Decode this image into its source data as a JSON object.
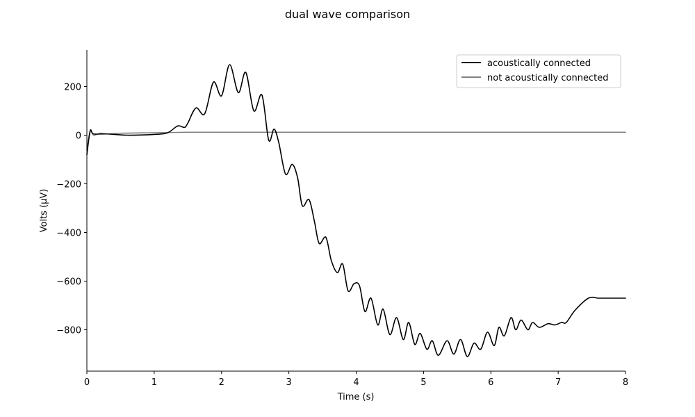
{
  "chart_data": {
    "type": "line",
    "title": "dual wave comparison",
    "xlabel": "Time (s)",
    "ylabel": "Volts (μV)",
    "xlim": [
      0,
      8
    ],
    "ylim": [
      -970,
      350
    ],
    "xticks": [
      0,
      1,
      2,
      3,
      4,
      5,
      6,
      7,
      8
    ],
    "yticks": [
      200,
      0,
      -200,
      -400,
      -600,
      -800
    ],
    "ytick_labels": [
      "200",
      "0",
      "−200",
      "−400",
      "−600",
      "−800"
    ],
    "grid": false,
    "legend_position": "top-right",
    "series": [
      {
        "name": "acoustically connected",
        "color": "#000000",
        "x": [
          0,
          0.05,
          0.1,
          0.3,
          0.6,
          1.0,
          1.2,
          1.35,
          1.45,
          1.5,
          1.62,
          1.75,
          1.88,
          2.0,
          2.12,
          2.25,
          2.36,
          2.48,
          2.6,
          2.7,
          2.78,
          2.85,
          2.95,
          3.05,
          3.13,
          3.2,
          3.3,
          3.38,
          3.45,
          3.55,
          3.63,
          3.72,
          3.8,
          3.88,
          3.97,
          4.05,
          4.13,
          4.22,
          4.32,
          4.4,
          4.5,
          4.6,
          4.7,
          4.78,
          4.87,
          4.95,
          5.05,
          5.13,
          5.22,
          5.35,
          5.45,
          5.55,
          5.65,
          5.75,
          5.85,
          5.95,
          6.05,
          6.12,
          6.2,
          6.3,
          6.37,
          6.45,
          6.55,
          6.62,
          6.72,
          6.85,
          6.95,
          7.05,
          7.12,
          7.25,
          7.45,
          7.6,
          7.75,
          7.9,
          8.0
        ],
        "y": [
          -80,
          18,
          5,
          5,
          0,
          3,
          10,
          38,
          32,
          50,
          112,
          88,
          218,
          162,
          290,
          175,
          258,
          100,
          165,
          -20,
          25,
          -30,
          -160,
          -120,
          -175,
          -290,
          -265,
          -355,
          -445,
          -420,
          -515,
          -565,
          -530,
          -640,
          -610,
          -620,
          -725,
          -670,
          -780,
          -715,
          -820,
          -750,
          -840,
          -770,
          -860,
          -815,
          -880,
          -845,
          -905,
          -845,
          -900,
          -840,
          -910,
          -855,
          -880,
          -810,
          -865,
          -790,
          -825,
          -750,
          -800,
          -760,
          -800,
          -770,
          -790,
          -775,
          -780,
          -770,
          -770,
          -720,
          -670,
          -670,
          -670,
          -670,
          -670
        ]
      },
      {
        "name": "not acoustically connected",
        "color": "#808080",
        "x": [
          0,
          0.05,
          0.1,
          0.2,
          0.3,
          0.5,
          1.0,
          1.5,
          2.0,
          3.0,
          4.0,
          5.0,
          6.0,
          7.0,
          8.0
        ],
        "y": [
          -60,
          18,
          0,
          8,
          5,
          8,
          10,
          12,
          12,
          12,
          12,
          12,
          12,
          12,
          12
        ]
      }
    ]
  }
}
